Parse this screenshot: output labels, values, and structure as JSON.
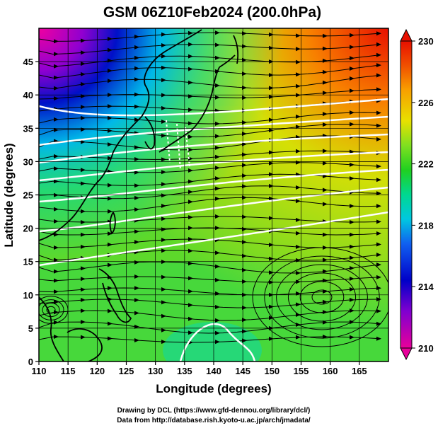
{
  "title": "GSM 06Z10Feb2024 (200.0hPa)",
  "x_axis": {
    "label": "Longitude (degrees)",
    "range": [
      110,
      170
    ],
    "ticks": [
      110,
      115,
      120,
      125,
      130,
      135,
      140,
      145,
      150,
      155,
      160,
      165
    ]
  },
  "y_axis": {
    "label": "Latitude  (degrees)",
    "range": [
      0,
      50
    ],
    "ticks": [
      0,
      5,
      10,
      15,
      20,
      25,
      30,
      35,
      40,
      45
    ]
  },
  "colorbar": {
    "ticks": [
      230,
      226,
      222,
      218,
      214,
      210
    ],
    "range": [
      210,
      230
    ],
    "colors": [
      "#e8009a",
      "#8000d0",
      "#0000c8",
      "#1060f0",
      "#00c8e0",
      "#00d890",
      "#20d020",
      "#80e020",
      "#e8e000",
      "#f8a000",
      "#f05000",
      "#e81000"
    ]
  },
  "credits": {
    "line1": "Drawing by DCL (https://www.gfd-dennou.org/library/dcl/)",
    "line2": "Data from http://database.rish.kyoto-u.ac.jp/arch/jmadata/"
  }
}
